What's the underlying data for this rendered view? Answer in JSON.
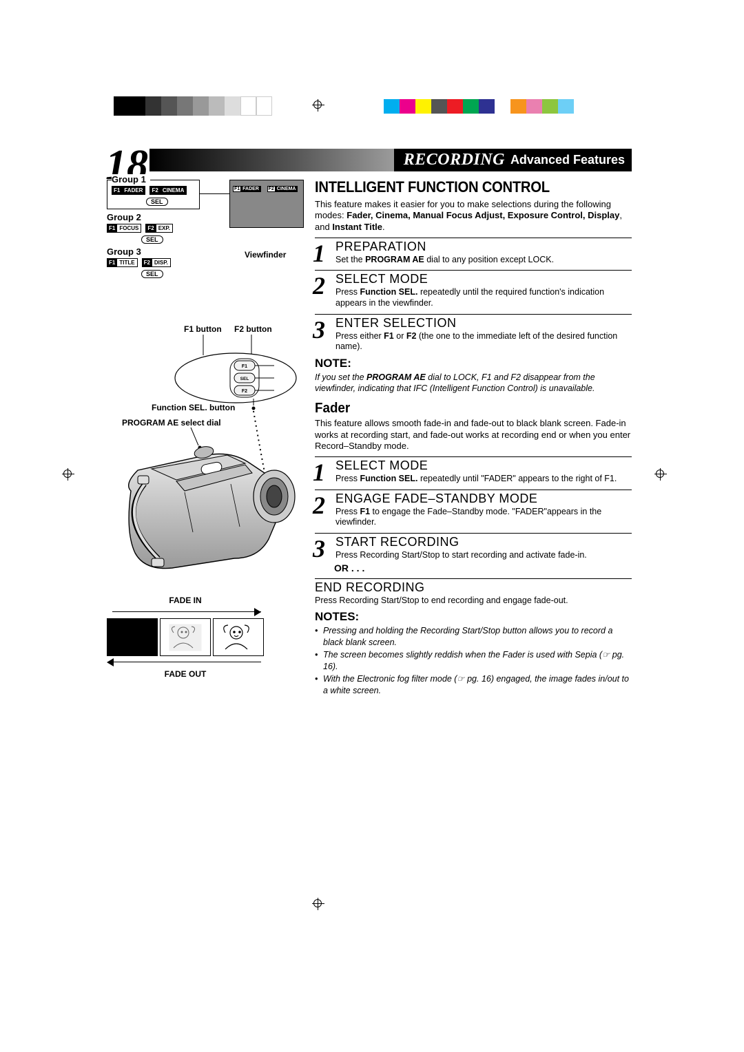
{
  "pageNumber": "18",
  "headerSection": "RECORDING",
  "headerSub": "Advanced Features",
  "left": {
    "group1Label": "Group 1",
    "group2Label": "Group 2",
    "group3Label": "Group 3",
    "g1f1tag": "F1",
    "g1f1lbl": "FADER",
    "g1f2tag": "F2",
    "g1f2lbl": "CINEMA",
    "g2f1tag": "F1",
    "g2f1lbl": "FOCUS",
    "g2f2tag": "F2",
    "g2f2lbl": "EXP.",
    "g3f1tag": "F1",
    "g3f1lbl": "TITLE",
    "g3f2tag": "F2",
    "g3f2lbl": "DISP.",
    "sel": "SEL",
    "viewfinderLabel": "Viewfinder",
    "vf_f1tag": "F1",
    "vf_f1lbl": "FADER",
    "vf_f2tag": "F2",
    "vf_f2lbl": "CINEMA",
    "f1btnLabel": "F1 button",
    "f2btnLabel": "F2 button",
    "topBtnF1": "F1",
    "topBtnSEL": "SEL",
    "topBtnF2": "F2",
    "selBtnLabel": "Function SEL. button",
    "aeDialLabel": "PROGRAM AE select dial",
    "fadeInLabel": "FADE IN",
    "fadeOutLabel": "FADE OUT"
  },
  "right": {
    "ifcTitle": "INTELLIGENT FUNCTION CONTROL",
    "ifcIntro1": "This feature makes it easier for you to make selections during the following modes: ",
    "ifcIntroBold": "Fader, Cinema, Manual Focus Adjust, Exposure Control, Display",
    "ifcIntro2": ", and ",
    "ifcIntroBold2": "Instant Title",
    "ifcIntro3": ".",
    "step1_title": "PREPARATION",
    "step1_body1": "Set the ",
    "step1_body_b": "PROGRAM AE",
    "step1_body2": " dial to any position except LOCK.",
    "step2_title": "SELECT MODE",
    "step2_body1": "Press ",
    "step2_body_b": "Function SEL.",
    "step2_body2": " repeatedly until the required function's indication appears in the viewfinder.",
    "step3_title": "ENTER SELECTION",
    "step3_body1": "Press either ",
    "step3_b1": "F1",
    "step3_mid": " or ",
    "step3_b2": "F2",
    "step3_body2": " (the one to the immediate left of the desired function name).",
    "noteH": "NOTE:",
    "noteBody": "If you set the PROGRAM AE dial to LOCK, F1 and F2 disappear from the viewfinder, indicating that IFC (Intelligent Function Control) is unavailable.",
    "faderH": "Fader",
    "faderBody": "This feature allows smooth fade-in and fade-out to black blank screen. Fade-in works at recording start, and fade-out works at recording end or when you enter Record–Standby mode.",
    "fstep1_title": "SELECT MODE",
    "fstep1_body1": "Press ",
    "fstep1_b": "Function SEL.",
    "fstep1_body2": " repeatedly until \"FADER\" appears to the right of F1.",
    "fstep2_title": "ENGAGE FADE–STANDBY MODE",
    "fstep2_body1": "Press ",
    "fstep2_b": "F1",
    "fstep2_body2": " to engage the Fade–Standby mode. \"FADER\"appears in the viewfinder.",
    "fstep3_title": "START RECORDING",
    "fstep3_body": "Press Recording Start/Stop to start recording and activate fade-in.",
    "or": "OR . . .",
    "fstep4_title": "END RECORDING",
    "fstep4_body": "Press Recording Start/Stop to end recording and engage fade-out.",
    "notesH": "NOTES:",
    "notes1": "Pressing and holding the Recording Start/Stop button allows you to record a black blank screen.",
    "notes2": "The screen becomes slightly reddish when the Fader is used with Sepia (☞ pg. 16).",
    "notes3": "With the Electronic fog filter mode (☞ pg. 16) engaged, the image fades in/out to a white screen."
  },
  "colorbars": {
    "left": [
      "#000000",
      "#000000",
      "#333333",
      "#555555",
      "#777777",
      "#999999",
      "#bbbbbb",
      "#dddddd",
      "#ffffff",
      "#ffffff"
    ],
    "right": [
      "#00aeef",
      "#ec008c",
      "#fff200",
      "#555555",
      "#ed1c24",
      "#00a651",
      "#2e3192",
      "#ffffff",
      "#f7941d",
      "#ea80b0",
      "#8dc63f",
      "#6dcff6"
    ]
  }
}
